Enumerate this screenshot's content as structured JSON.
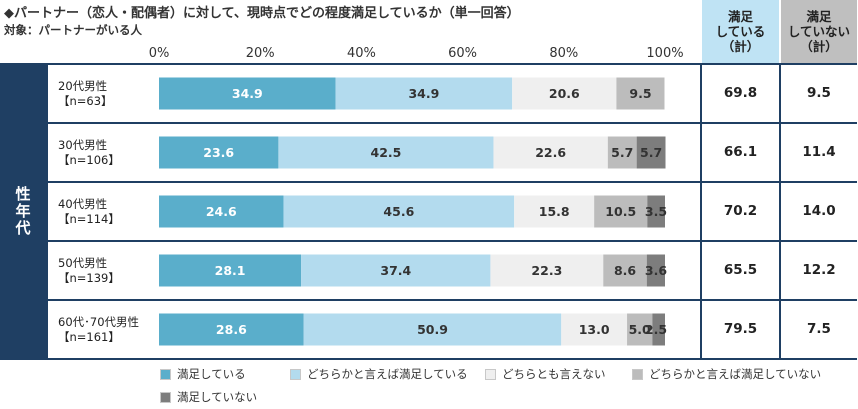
{
  "header": {
    "title": "◆パートナー（恋人・配偶者）に対して、現時点でどの程度満足しているか（単一回答）",
    "subtitle": "対象：パートナーがいる人"
  },
  "summary_headers": {
    "satisfied": [
      "満足",
      "している",
      "（計）"
    ],
    "not_satisfied": [
      "満足",
      "していない",
      "（計）"
    ]
  },
  "side_label": "性年代",
  "colors": {
    "s1": "#5aaecb",
    "s2": "#b3dbee",
    "s3": "#efefef",
    "s4": "#bcbcbc",
    "s5": "#7d7d7d",
    "frame": "#1f3f63"
  },
  "chart_data": {
    "type": "bar",
    "orientation": "horizontal",
    "stacked": true,
    "xlim": [
      0,
      100
    ],
    "x_ticks": [
      "0%",
      "20%",
      "40%",
      "60%",
      "80%",
      "100%"
    ],
    "categories": [
      {
        "line1": "20代男性",
        "line2": "【n=63】"
      },
      {
        "line1": "30代男性",
        "line2": "【n=106】"
      },
      {
        "line1": "40代男性",
        "line2": "【n=114】"
      },
      {
        "line1": "50代男性",
        "line2": "【n=139】"
      },
      {
        "line1": "60代･70代男性",
        "line2": "【n=161】"
      }
    ],
    "series": [
      {
        "name": "満足している",
        "values": [
          34.9,
          23.6,
          24.6,
          28.1,
          28.6
        ]
      },
      {
        "name": "どちらかと言えば満足している",
        "values": [
          34.9,
          42.5,
          45.6,
          37.4,
          50.9
        ]
      },
      {
        "name": "どちらとも言えない",
        "values": [
          20.6,
          22.6,
          15.8,
          22.3,
          13.0
        ]
      },
      {
        "name": "どちらかと言えば満足していない",
        "values": [
          9.5,
          5.7,
          10.5,
          8.6,
          5.0
        ]
      },
      {
        "name": "満足していない",
        "values": [
          0,
          5.7,
          3.5,
          3.6,
          2.5
        ]
      }
    ],
    "value_labels": [
      [
        "34.9",
        "34.9",
        "20.6",
        "9.5",
        ""
      ],
      [
        "23.6",
        "42.5",
        "22.6",
        "5.7",
        "5.7"
      ],
      [
        "24.6",
        "45.6",
        "15.8",
        "10.5",
        "3.5"
      ],
      [
        "28.1",
        "37.4",
        "22.3",
        "8.6",
        "3.6"
      ],
      [
        "28.6",
        "50.9",
        "13.0",
        "5.0",
        "2.5"
      ]
    ],
    "satisfied_total": [
      "69.8",
      "66.1",
      "70.2",
      "65.5",
      "79.5"
    ],
    "not_satisfied_total": [
      "9.5",
      "11.4",
      "14.0",
      "12.2",
      "7.5"
    ],
    "legend_position": "bottom"
  }
}
